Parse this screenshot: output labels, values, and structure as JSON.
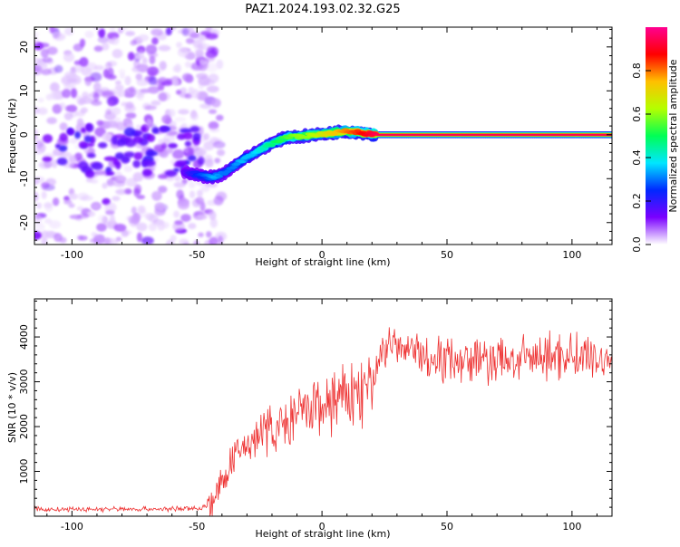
{
  "title": "PAZ1.2024.193.02.32.G25",
  "chart_data": [
    {
      "type": "heatmap",
      "title": "PAZ1.2024.193.02.32.G25",
      "xlabel": "Height of straight line (km)",
      "ylabel": "Frequency (Hz)",
      "xlim": [
        -115,
        116
      ],
      "ylim": [
        -25,
        24.5
      ],
      "x_ticks": [
        -100,
        -50,
        0,
        50,
        100
      ],
      "y_ticks": [
        -20,
        -10,
        0,
        10,
        20
      ],
      "track": {
        "x": [
          -55,
          -50,
          -46,
          -43,
          -40,
          -36,
          -32,
          -28,
          -25,
          -22,
          -18,
          -14,
          -10,
          -6,
          -2,
          2,
          6,
          10,
          14,
          18,
          22,
          116
        ],
        "frequency": [
          -8.5,
          -9.2,
          -9.5,
          -9.6,
          -9.0,
          -7.5,
          -5.8,
          -4.5,
          -3.5,
          -2.5,
          -1.5,
          -0.5,
          -0.5,
          -0.2,
          0.0,
          0.3,
          0.6,
          0.8,
          0.6,
          0.3,
          0.0,
          0.0
        ],
        "amplitude": [
          0.15,
          0.25,
          0.3,
          0.35,
          0.3,
          0.3,
          0.35,
          0.35,
          0.4,
          0.45,
          0.5,
          0.55,
          0.6,
          0.6,
          0.65,
          0.7,
          0.75,
          0.8,
          0.85,
          0.9,
          0.95,
          0.95
        ]
      },
      "colorbar": {
        "label": "Normalized spectral amplitude",
        "range": [
          0,
          1
        ],
        "ticks": [
          "0.0",
          "0.2",
          "0.4",
          "0.6",
          "0.8"
        ],
        "colors": [
          "#ffffff",
          "#7a00ff",
          "#0028ff",
          "#00e6ff",
          "#00ff55",
          "#b4ff00",
          "#ffc000",
          "#ff0000",
          "#ff0090"
        ]
      }
    },
    {
      "type": "line",
      "xlabel": "Height of straight line (km)",
      "ylabel": "SNR (10 * v/v)",
      "xlim": [
        -115,
        116
      ],
      "ylim": [
        0,
        4850
      ],
      "x_ticks": [
        -100,
        -50,
        0,
        50,
        100
      ],
      "y_ticks": [
        1000,
        2000,
        3000,
        4000
      ],
      "color": "#ee3333",
      "x": [
        -115,
        -100,
        -80,
        -60,
        -48,
        -44,
        -40,
        -36,
        -32,
        -28,
        -24,
        -20,
        -16,
        -12,
        -8,
        -4,
        0,
        4,
        8,
        12,
        16,
        20,
        24,
        28,
        32,
        36,
        40,
        50,
        60,
        70,
        80,
        90,
        100,
        110,
        116
      ],
      "y": [
        150,
        150,
        160,
        160,
        180,
        300,
        700,
        1200,
        1500,
        1700,
        1900,
        1950,
        2000,
        2150,
        2300,
        2400,
        2450,
        2550,
        2650,
        2700,
        2800,
        2900,
        3700,
        3900,
        3600,
        3800,
        3500,
        3550,
        3500,
        3450,
        3500,
        3550,
        3600,
        3500,
        3500
      ]
    }
  ]
}
